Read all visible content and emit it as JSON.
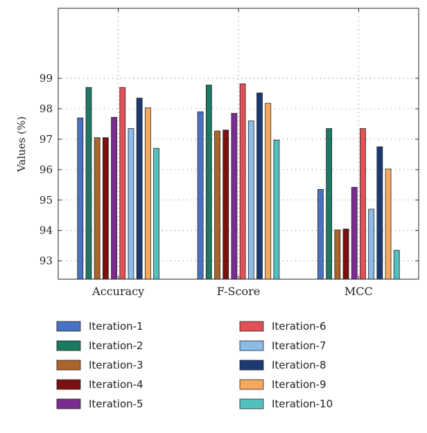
{
  "chart_data": {
    "type": "bar",
    "title": "",
    "xlabel": "",
    "ylabel": "Values (%)",
    "ylim": [
      92.4,
      101.3
    ],
    "yticks": [
      93,
      94,
      95,
      96,
      97,
      98,
      99
    ],
    "grid": true,
    "legend_placement": "bottom",
    "categories": [
      "Accuracy",
      "F-Score",
      "MCC"
    ],
    "series": [
      {
        "name": "Iteration-1",
        "color": "#4a72c4",
        "values": [
          97.7,
          97.9,
          95.35
        ]
      },
      {
        "name": "Iteration-2",
        "color": "#1c7a63",
        "values": [
          98.7,
          98.78,
          97.35
        ]
      },
      {
        "name": "Iteration-3",
        "color": "#a9652c",
        "values": [
          97.05,
          97.27,
          94.02
        ]
      },
      {
        "name": "Iteration-4",
        "color": "#7b1010",
        "values": [
          97.05,
          97.3,
          94.05
        ]
      },
      {
        "name": "Iteration-5",
        "color": "#7b2c91",
        "values": [
          97.72,
          97.85,
          95.42
        ]
      },
      {
        "name": "Iteration-6",
        "color": "#e05258",
        "values": [
          98.7,
          98.82,
          97.35
        ]
      },
      {
        "name": "Iteration-7",
        "color": "#8cbbe6",
        "values": [
          97.35,
          97.6,
          94.7
        ]
      },
      {
        "name": "Iteration-8",
        "color": "#1d3a72",
        "values": [
          98.35,
          98.52,
          96.75
        ]
      },
      {
        "name": "Iteration-9",
        "color": "#f5a95e",
        "values": [
          98.03,
          98.18,
          96.02
        ]
      },
      {
        "name": "Iteration-10",
        "color": "#52c0bf",
        "values": [
          96.7,
          96.97,
          93.35
        ]
      }
    ]
  }
}
